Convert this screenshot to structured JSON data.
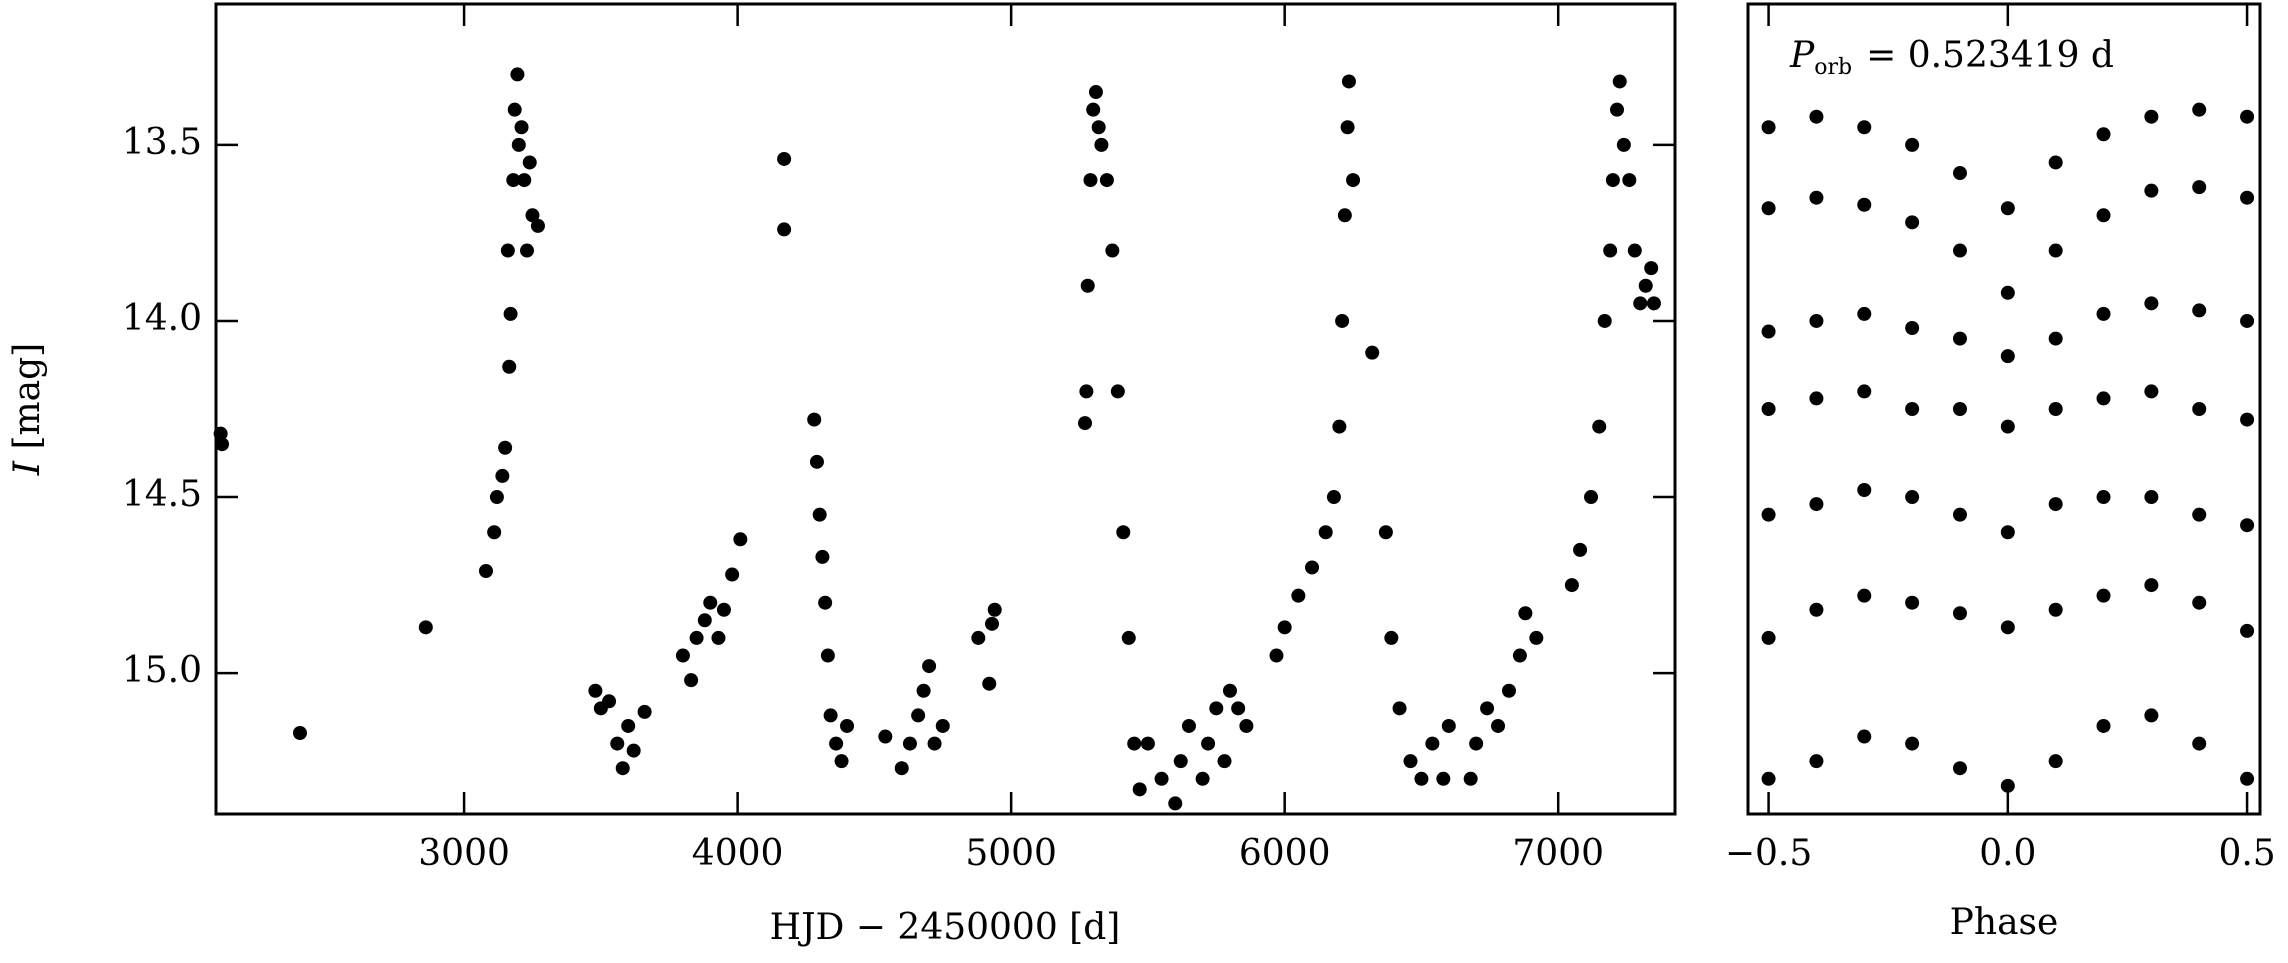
{
  "chart_data": [
    {
      "type": "scatter",
      "color": "#000000",
      "xlabel": "HJD − 2450000 [d]",
      "ylabel_symbol": "I",
      "ylabel_unit": "[mag]",
      "xlim": [
        2093,
        7427
      ],
      "ylim": [
        15.4,
        13.1
      ],
      "xticks": [
        3000,
        4000,
        5000,
        6000,
        7000
      ],
      "yticks": [
        13.5,
        {
          "value": 14,
          "label": "14.0"
        },
        14.5,
        {
          "value": 15,
          "label": "15.0"
        }
      ],
      "x": [
        2110,
        2115,
        2400,
        2860,
        3080,
        3110,
        3120,
        3140,
        3150,
        3165,
        3170,
        3160,
        3180,
        3185,
        3195,
        3200,
        3210,
        3220,
        3240,
        3250,
        3270,
        3230,
        3480,
        3500,
        3530,
        3560,
        3580,
        3600,
        3620,
        3660,
        3800,
        3830,
        3850,
        3880,
        3900,
        3930,
        3950,
        3980,
        4010,
        4170,
        4170,
        4280,
        4290,
        4300,
        4310,
        4320,
        4330,
        4340,
        4360,
        4380,
        4400,
        4540,
        4600,
        4630,
        4660,
        4680,
        4700,
        4720,
        4750,
        4880,
        4920,
        4930,
        4940,
        5270,
        5275,
        5280,
        5290,
        5300,
        5310,
        5320,
        5330,
        5350,
        5370,
        5390,
        5410,
        5430,
        5450,
        5470,
        5500,
        5550,
        5600,
        5620,
        5650,
        5700,
        5720,
        5750,
        5780,
        5800,
        5830,
        5860,
        5970,
        6000,
        6050,
        6100,
        6150,
        6180,
        6200,
        6210,
        6220,
        6230,
        6235,
        6250,
        6320,
        6370,
        6390,
        6420,
        6460,
        6500,
        6540,
        6580,
        6600,
        6680,
        6700,
        6740,
        6780,
        6820,
        6860,
        6880,
        6920,
        7050,
        7080,
        7120,
        7150,
        7170,
        7190,
        7200,
        7215,
        7225,
        7240,
        7260,
        7280,
        7300,
        7320,
        7340,
        7350
      ],
      "y": [
        14.32,
        14.35,
        15.17,
        14.87,
        14.71,
        14.6,
        14.5,
        14.44,
        14.36,
        14.13,
        13.98,
        13.8,
        13.6,
        13.4,
        13.3,
        13.5,
        13.45,
        13.6,
        13.55,
        13.7,
        13.73,
        13.8,
        15.05,
        15.1,
        15.08,
        15.2,
        15.27,
        15.15,
        15.22,
        15.11,
        14.95,
        15.02,
        14.9,
        14.85,
        14.8,
        14.9,
        14.82,
        14.72,
        14.62,
        13.54,
        13.74,
        14.28,
        14.4,
        14.55,
        14.67,
        14.8,
        14.95,
        15.12,
        15.2,
        15.25,
        15.15,
        15.18,
        15.27,
        15.2,
        15.12,
        15.05,
        14.98,
        15.2,
        15.15,
        14.9,
        15.03,
        14.86,
        14.82,
        14.29,
        14.2,
        13.9,
        13.6,
        13.4,
        13.35,
        13.45,
        13.5,
        13.6,
        13.8,
        14.2,
        14.6,
        14.9,
        15.2,
        15.33,
        15.2,
        15.3,
        15.37,
        15.25,
        15.15,
        15.3,
        15.2,
        15.1,
        15.25,
        15.05,
        15.1,
        15.15,
        14.95,
        14.87,
        14.78,
        14.7,
        14.6,
        14.5,
        14.3,
        14.0,
        13.7,
        13.45,
        13.32,
        13.6,
        14.09,
        14.6,
        14.9,
        15.1,
        15.25,
        15.3,
        15.2,
        15.3,
        15.15,
        15.3,
        15.2,
        15.1,
        15.15,
        15.05,
        14.95,
        14.83,
        14.9,
        14.75,
        14.65,
        14.5,
        14.3,
        14.0,
        13.8,
        13.6,
        13.4,
        13.32,
        13.5,
        13.6,
        13.8,
        13.95,
        13.9,
        13.85,
        13.95
      ]
    },
    {
      "type": "scatter",
      "color": "#000000",
      "xlabel": "Phase",
      "annotation_symbol": "P",
      "annotation_subscript": "orb",
      "annotation_text": "= 0.523419 d",
      "xlim": [
        -0.543,
        0.527
      ],
      "ylim": [
        15.4,
        13.1
      ],
      "xticks": [
        {
          "value": -0.5,
          "label": "−0.5"
        },
        {
          "value": 0,
          "label": "0.0"
        },
        {
          "value": 0.5,
          "label": "0.5"
        }
      ],
      "x": [
        -0.5,
        -0.4,
        -0.3,
        -0.2,
        -0.1,
        0,
        0.1,
        0.2,
        0.3,
        0.4,
        0.5,
        -0.5,
        -0.4,
        -0.3,
        -0.2,
        -0.1,
        0,
        0.1,
        0.2,
        0.3,
        0.4,
        0.5,
        -0.5,
        -0.4,
        -0.3,
        -0.2,
        -0.1,
        0,
        0.1,
        0.2,
        0.3,
        0.4,
        0.5,
        -0.5,
        -0.4,
        -0.3,
        -0.2,
        -0.1,
        0,
        0.1,
        0.2,
        0.3,
        0.4,
        0.5,
        -0.5,
        -0.4,
        -0.3,
        -0.2,
        -0.1,
        0,
        0.1,
        0.2,
        0.3,
        0.4,
        0.5,
        -0.5,
        -0.4,
        -0.3,
        -0.2,
        -0.1,
        0,
        0.1,
        0.2,
        0.3,
        0.4,
        0.5,
        -0.5,
        -0.4,
        -0.3,
        -0.2,
        -0.1,
        0,
        0.1,
        0.2,
        0.3,
        0.4,
        0.5
      ],
      "y": [
        13.45,
        13.42,
        13.45,
        13.5,
        13.58,
        13.68,
        13.55,
        13.47,
        13.42,
        13.4,
        13.42,
        13.68,
        13.65,
        13.67,
        13.72,
        13.8,
        13.92,
        13.8,
        13.7,
        13.63,
        13.62,
        13.65,
        14.03,
        14.0,
        13.98,
        14.02,
        14.05,
        14.1,
        14.05,
        13.98,
        13.95,
        13.97,
        14.0,
        14.25,
        14.22,
        14.2,
        14.25,
        14.25,
        14.3,
        14.25,
        14.22,
        14.2,
        14.25,
        14.28,
        14.55,
        14.52,
        14.48,
        14.5,
        14.55,
        14.6,
        14.52,
        14.5,
        14.5,
        14.55,
        14.58,
        14.9,
        14.82,
        14.78,
        14.8,
        14.83,
        14.87,
        14.82,
        14.78,
        14.75,
        14.8,
        14.88,
        15.3,
        15.25,
        15.18,
        15.2,
        15.27,
        15.32,
        15.25,
        15.15,
        15.12,
        15.2,
        15.3
      ]
    }
  ]
}
